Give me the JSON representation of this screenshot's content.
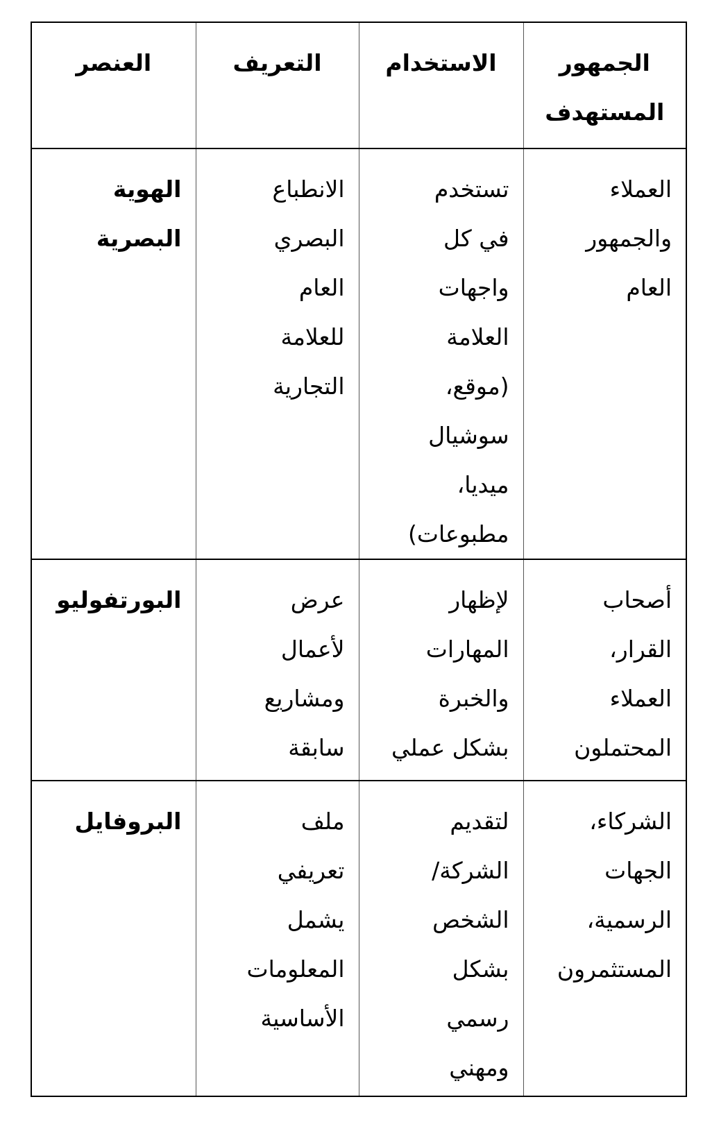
{
  "page": {
    "background_color": "#ffffff",
    "text_color": "#000000"
  },
  "table": {
    "direction": "rtl",
    "border_colors": {
      "outer": "#000000",
      "row_lines": "#000000",
      "column_lines": "#555555"
    },
    "headers": {
      "element": "العنصر",
      "definition": "التعريف",
      "usage": "الاستخدام",
      "audience": "الجمهور\nالمستهدف"
    },
    "rows": [
      {
        "element": "الهوية\nالبصرية",
        "definition": "الانطباع\nالبصري\nالعام\nللعلامة\nالتجارية",
        "usage": "تستخدم\nفي كل\nواجهات\nالعلامة\n(موقع،\nسوشيال\nميديا،\nمطبوعات)",
        "audience": "العملاء\nوالجمهور\nالعام"
      },
      {
        "element": "البورتفوليو",
        "definition": "عرض\nلأعمال\nومشاريع\nسابقة",
        "usage": "لإظهار\nالمهارات\nوالخبرة\nبشكل عملي",
        "audience": "أصحاب\nالقرار،\nالعملاء\nالمحتملون"
      },
      {
        "element": "البروفايل",
        "definition": "ملف\nتعريفي\nيشمل\nالمعلومات\nالأساسية",
        "usage": "لتقديم\nالشركة/\nالشخص\nبشكل\nرسمي\nومهني",
        "audience": "الشركاء،\nالجهات\nالرسمية،\nالمستثمرون"
      }
    ]
  }
}
